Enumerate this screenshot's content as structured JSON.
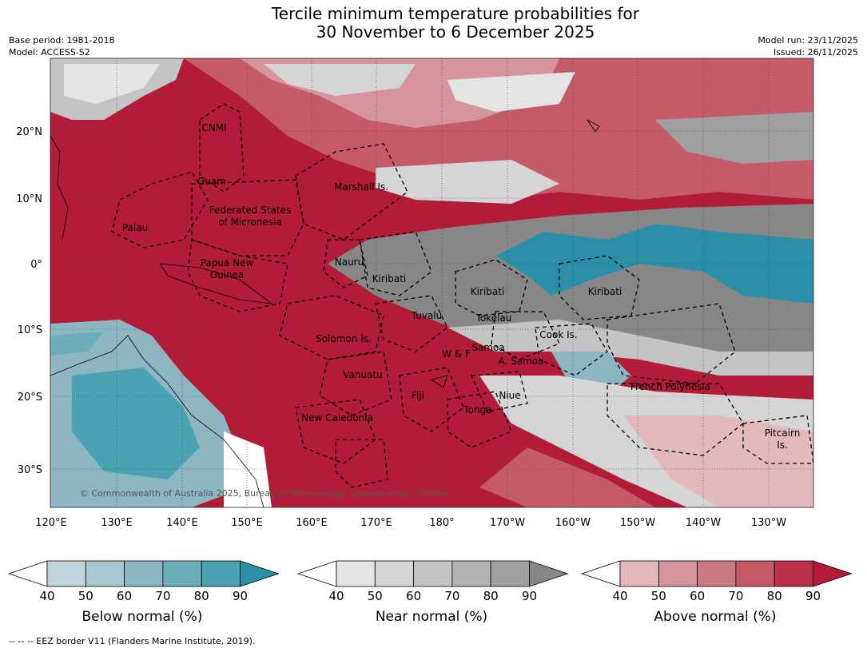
{
  "title_line1": "Tercile minimum temperature probabilities for",
  "title_line2": "30 November to 6 December 2025",
  "base_period": "Base period: 1981-2018",
  "model": "Model: ACCESS-S2",
  "model_run": "Model run: 23/11/2025",
  "issued": "Issued: 26/11/2025",
  "copyright": "© Commonwealth of Australia 2025, Bureau of Meteorology, supported by COSPPac",
  "lon_ticks": [
    "120°E",
    "130°E",
    "140°E",
    "150°E",
    "160°E",
    "170°E",
    "180°",
    "170°W",
    "160°W",
    "150°W",
    "140°W",
    "130°W"
  ],
  "lat_ticks": [
    "20°N",
    "10°N",
    "0°",
    "10°S",
    "20°S",
    "30°S"
  ],
  "regions": {
    "cnmi": "CNMI",
    "guam": "Guam",
    "marshall": "Marshall Is.",
    "fsm1": "Federated States",
    "fsm2": "of Micronesia",
    "palau": "Palau",
    "png1": "Papua New",
    "png2": "Guinea",
    "nauru": "Nauru",
    "kiribati_w": "Kiribati",
    "kiribati_c": "Kiribati",
    "kiribati_e": "Kiribati",
    "tuvalu": "Tuvalu",
    "tokelau": "Tokelau",
    "cook": "Cook Is.",
    "solomon": "Solomon Is.",
    "wf": "W & F",
    "samoa": "Samoa",
    "asamoa": "A. Samoa",
    "vanuatu": "Vanuatu",
    "fiji": "Fiji",
    "niue": "Niue",
    "tonga": "Tonga",
    "fp": "French Polynesia",
    "newcal": "New Caledonia",
    "pitcairn1": "Pitcairn",
    "pitcairn2": "Is."
  },
  "colorbars": {
    "below": {
      "label": "Below normal (%)",
      "ticks": [
        "40",
        "50",
        "60",
        "70",
        "80",
        "90"
      ],
      "colors": [
        "#bfd3da",
        "#a8c7ce",
        "#8eb6c2",
        "#6daebb",
        "#4aa2b3",
        "#2b8fa8"
      ]
    },
    "near": {
      "label": "Near normal (%)",
      "ticks": [
        "40",
        "50",
        "60",
        "70",
        "80",
        "90"
      ],
      "colors": [
        "#e4e4e4",
        "#d5d5d5",
        "#c4c4c4",
        "#b3b3b3",
        "#a0a0a0",
        "#878787"
      ]
    },
    "above": {
      "label": "Above normal (%)",
      "ticks": [
        "40",
        "50",
        "60",
        "70",
        "80",
        "90"
      ],
      "colors": [
        "#e3b9be",
        "#d5949c",
        "#cb7a82",
        "#c55b69",
        "#bb3049",
        "#b31c39"
      ]
    }
  },
  "footer": "--  --  -- EEZ border V11 (Flanders Marine Institute, 2019)."
}
